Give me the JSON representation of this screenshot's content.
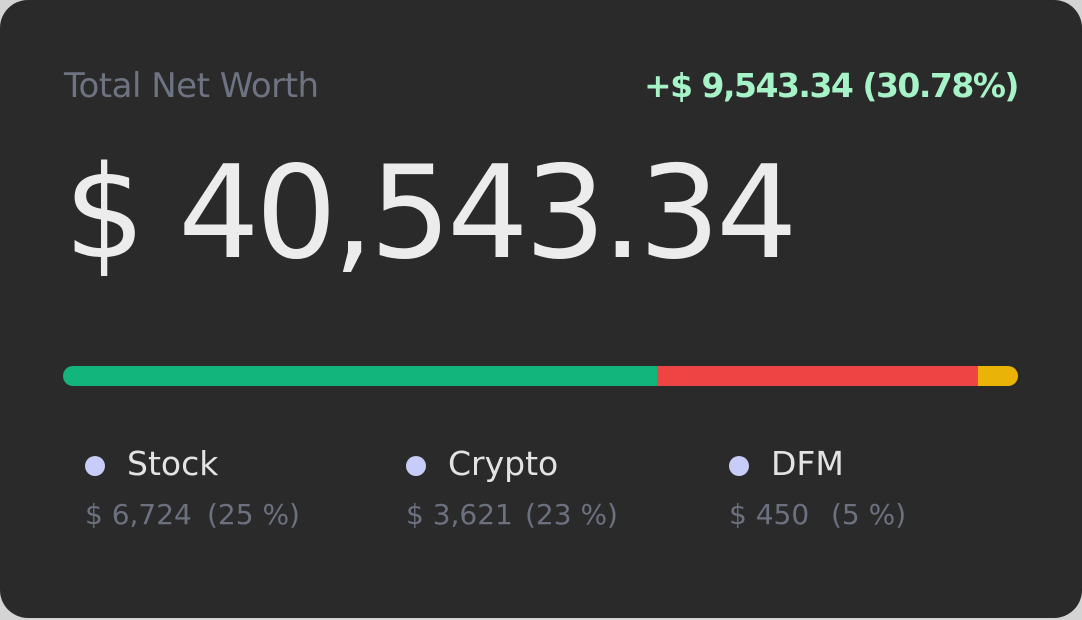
{
  "card": {
    "title": "Total Net Worth",
    "change": "+$ 9,543.34 (30.78%)",
    "net_worth": "$ 40,543.34"
  },
  "colors": {
    "background": "#2a2a2a",
    "change_text": "#a6f3c8",
    "dot": "#c7ccf8"
  },
  "allocation_bar": [
    {
      "name": "stock",
      "fraction": 0.622,
      "color": "#12b57b"
    },
    {
      "name": "crypto",
      "fraction": 0.336,
      "color": "#ef4444"
    },
    {
      "name": "dfm",
      "fraction": 0.042,
      "color": "#eab308"
    }
  ],
  "legend": [
    {
      "name": "Stock",
      "amount": "$ 6,724",
      "percent": "(25 %)"
    },
    {
      "name": "Crypto",
      "amount": "$ 3,621",
      "percent": "(23 %)"
    },
    {
      "name": "DFM",
      "amount": "$ 450",
      "percent": "(5 %)"
    }
  ]
}
